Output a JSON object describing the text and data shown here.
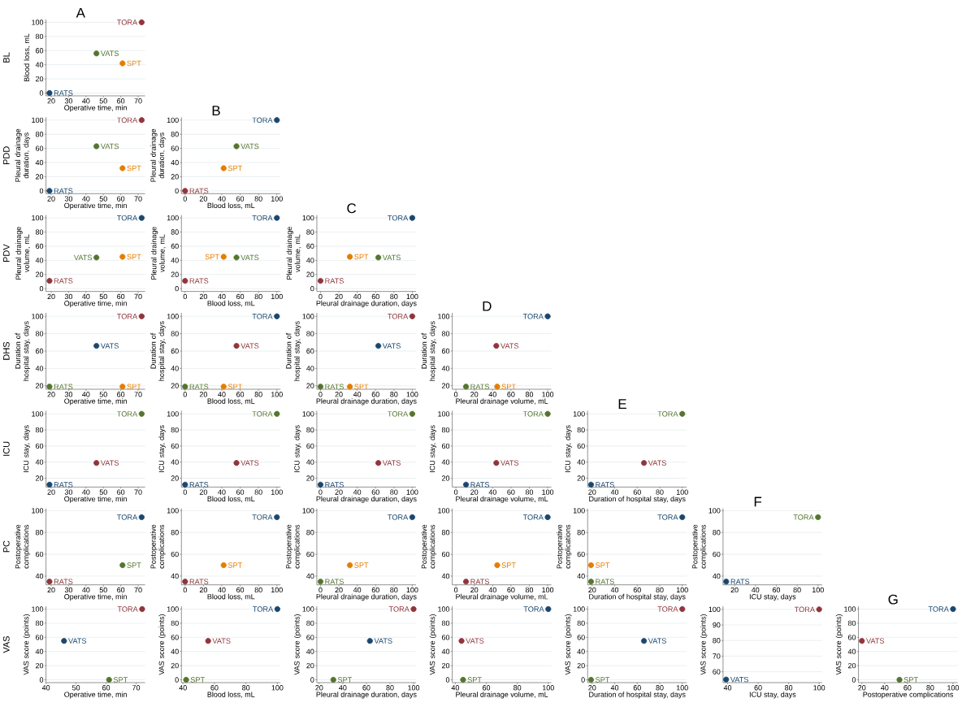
{
  "chart_data": [
    {
      "type": "scatter",
      "title": "A",
      "xlabel": "Operative time, min",
      "ylabel": "Blood loss, mL",
      "xlim": [
        17,
        74
      ],
      "xticks": [
        20,
        30,
        40,
        50,
        60,
        70
      ],
      "ylim": [
        -4,
        104
      ],
      "yticks": [
        0,
        20,
        40,
        60,
        80,
        100
      ],
      "grid": "y",
      "annotations": [
        "BL"
      ],
      "series": [
        {
          "name": "TORA",
          "color": "#90353b",
          "x": [
            72
          ],
          "values": [
            100
          ]
        },
        {
          "name": "VATS",
          "color": "#55752f",
          "x": [
            46
          ],
          "values": [
            56
          ]
        },
        {
          "name": "SPT",
          "color": "#e37e00",
          "x": [
            61
          ],
          "values": [
            42
          ]
        },
        {
          "name": "RATS",
          "color": "#1a476f",
          "x": [
            19
          ],
          "values": [
            0
          ]
        }
      ]
    },
    {
      "type": "scatter",
      "xlabel": "Operative time, min",
      "ylabel": "Pleural drainage duration, days",
      "xlim": [
        17,
        74
      ],
      "xticks": [
        20,
        30,
        40,
        50,
        60,
        70
      ],
      "ylim": [
        -4,
        104
      ],
      "yticks": [
        0,
        20,
        40,
        60,
        80,
        100
      ],
      "grid": "y",
      "annotations": [
        "PDD"
      ],
      "series": [
        {
          "name": "TORA",
          "color": "#90353b",
          "x": [
            72
          ],
          "values": [
            100
          ]
        },
        {
          "name": "VATS",
          "color": "#55752f",
          "x": [
            46
          ],
          "values": [
            63
          ]
        },
        {
          "name": "SPT",
          "color": "#e37e00",
          "x": [
            61
          ],
          "values": [
            32
          ]
        },
        {
          "name": "RATS",
          "color": "#1a476f",
          "x": [
            19
          ],
          "values": [
            0
          ]
        }
      ]
    },
    {
      "type": "scatter",
      "title": "B",
      "xlabel": "Blood loss, mL",
      "ylabel": "Pleural drainage duration, days",
      "xlim": [
        -4,
        104
      ],
      "xticks": [
        0,
        20,
        40,
        60,
        80,
        100
      ],
      "ylim": [
        -4,
        104
      ],
      "yticks": [
        0,
        20,
        40,
        60,
        80,
        100
      ],
      "grid": "y",
      "series": [
        {
          "name": "TORA",
          "color": "#1a476f",
          "x": [
            100
          ],
          "values": [
            100
          ]
        },
        {
          "name": "VATS",
          "color": "#55752f",
          "x": [
            56
          ],
          "values": [
            63
          ]
        },
        {
          "name": "SPT",
          "color": "#e37e00",
          "x": [
            42
          ],
          "values": [
            32
          ]
        },
        {
          "name": "RATS",
          "color": "#90353b",
          "x": [
            0
          ],
          "values": [
            0
          ]
        }
      ]
    },
    {
      "type": "scatter",
      "xlabel": "Operative time, min",
      "ylabel": "Pleural drainage volume, mL",
      "xlim": [
        17,
        74
      ],
      "xticks": [
        20,
        30,
        40,
        50,
        60,
        70
      ],
      "ylim": [
        -4,
        104
      ],
      "yticks": [
        0,
        20,
        40,
        60,
        80,
        100
      ],
      "grid": "y",
      "annotations": [
        "PDV"
      ],
      "series": [
        {
          "name": "TORA",
          "color": "#1a476f",
          "x": [
            72
          ],
          "values": [
            100
          ]
        },
        {
          "name": "VATS",
          "color": "#55752f",
          "x": [
            46
          ],
          "values": [
            44
          ]
        },
        {
          "name": "SPT",
          "color": "#e37e00",
          "x": [
            61
          ],
          "values": [
            45
          ]
        },
        {
          "name": "RATS",
          "color": "#90353b",
          "x": [
            19
          ],
          "values": [
            11
          ]
        }
      ]
    },
    {
      "type": "scatter",
      "xlabel": "Blood loss, mL",
      "ylabel": "Pleural drainage volume, mL",
      "xlim": [
        -4,
        104
      ],
      "xticks": [
        0,
        20,
        40,
        60,
        80,
        100
      ],
      "ylim": [
        -4,
        104
      ],
      "yticks": [
        0,
        20,
        40,
        60,
        80,
        100
      ],
      "grid": "y",
      "series": [
        {
          "name": "TORA",
          "color": "#1a476f",
          "x": [
            100
          ],
          "values": [
            100
          ]
        },
        {
          "name": "VATS",
          "color": "#55752f",
          "x": [
            56
          ],
          "values": [
            44
          ]
        },
        {
          "name": "SPT",
          "color": "#e37e00",
          "x": [
            42
          ],
          "values": [
            45
          ]
        },
        {
          "name": "RATS",
          "color": "#90353b",
          "x": [
            0
          ],
          "values": [
            11
          ]
        }
      ]
    },
    {
      "type": "scatter",
      "title": "C",
      "xlabel": "Pleural drainage duration, days",
      "ylabel": "Pleural drainage volume, mL",
      "xlim": [
        -4,
        104
      ],
      "xticks": [
        0,
        20,
        40,
        60,
        80,
        100
      ],
      "ylim": [
        -4,
        104
      ],
      "yticks": [
        0,
        20,
        40,
        60,
        80,
        100
      ],
      "grid": "y",
      "series": [
        {
          "name": "TORA",
          "color": "#1a476f",
          "x": [
            100
          ],
          "values": [
            100
          ]
        },
        {
          "name": "VATS",
          "color": "#55752f",
          "x": [
            63
          ],
          "values": [
            44
          ]
        },
        {
          "name": "SPT",
          "color": "#e37e00",
          "x": [
            32
          ],
          "values": [
            45
          ]
        },
        {
          "name": "RATS",
          "color": "#90353b",
          "x": [
            0
          ],
          "values": [
            11
          ]
        }
      ]
    },
    {
      "type": "scatter",
      "xlabel": "Operative time, min",
      "ylabel": "Duration of hospital stay, days",
      "xlim": [
        17,
        74
      ],
      "xticks": [
        20,
        30,
        40,
        50,
        60,
        70
      ],
      "ylim": [
        16,
        104
      ],
      "yticks": [
        20,
        40,
        60,
        80,
        100
      ],
      "grid": "y",
      "annotations": [
        "DHS"
      ],
      "series": [
        {
          "name": "TORA",
          "color": "#90353b",
          "x": [
            72
          ],
          "values": [
            100
          ]
        },
        {
          "name": "VATS",
          "color": "#1a476f",
          "x": [
            46
          ],
          "values": [
            66
          ]
        },
        {
          "name": "SPT",
          "color": "#e37e00",
          "x": [
            61
          ],
          "values": [
            19
          ]
        },
        {
          "name": "RATS",
          "color": "#55752f",
          "x": [
            19
          ],
          "values": [
            19
          ]
        }
      ]
    },
    {
      "type": "scatter",
      "xlabel": "Blood loss, mL",
      "ylabel": "Duration of hospital stay, days",
      "xlim": [
        -4,
        104
      ],
      "xticks": [
        0,
        20,
        40,
        60,
        80,
        100
      ],
      "ylim": [
        16,
        104
      ],
      "yticks": [
        20,
        40,
        60,
        80,
        100
      ],
      "grid": "y",
      "series": [
        {
          "name": "TORA",
          "color": "#1a476f",
          "x": [
            100
          ],
          "values": [
            100
          ]
        },
        {
          "name": "VATS",
          "color": "#90353b",
          "x": [
            56
          ],
          "values": [
            66
          ]
        },
        {
          "name": "SPT",
          "color": "#e37e00",
          "x": [
            42
          ],
          "values": [
            19
          ]
        },
        {
          "name": "RATS",
          "color": "#55752f",
          "x": [
            0
          ],
          "values": [
            19
          ]
        }
      ]
    },
    {
      "type": "scatter",
      "xlabel": "Pleural drainage duration, days",
      "ylabel": "Duration of hospital stay, days",
      "xlim": [
        -4,
        104
      ],
      "xticks": [
        0,
        20,
        40,
        60,
        80,
        100
      ],
      "ylim": [
        16,
        104
      ],
      "yticks": [
        20,
        40,
        60,
        80,
        100
      ],
      "grid": "y",
      "series": [
        {
          "name": "TORA",
          "color": "#90353b",
          "x": [
            100
          ],
          "values": [
            100
          ]
        },
        {
          "name": "VATS",
          "color": "#1a476f",
          "x": [
            63
          ],
          "values": [
            66
          ]
        },
        {
          "name": "SPT",
          "color": "#e37e00",
          "x": [
            32
          ],
          "values": [
            19
          ]
        },
        {
          "name": "RATS",
          "color": "#55752f",
          "x": [
            0
          ],
          "values": [
            19
          ]
        }
      ]
    },
    {
      "type": "scatter",
      "title": "D",
      "xlabel": "Pleural drainage volume, mL",
      "ylabel": "Duration of hospital stay, days",
      "xlim": [
        -4,
        104
      ],
      "xticks": [
        0,
        20,
        40,
        60,
        80,
        100
      ],
      "ylim": [
        16,
        104
      ],
      "yticks": [
        20,
        40,
        60,
        80,
        100
      ],
      "grid": "y",
      "series": [
        {
          "name": "TORA",
          "color": "#1a476f",
          "x": [
            100
          ],
          "values": [
            100
          ]
        },
        {
          "name": "VATS",
          "color": "#90353b",
          "x": [
            44
          ],
          "values": [
            66
          ]
        },
        {
          "name": "SPT",
          "color": "#e37e00",
          "x": [
            45
          ],
          "values": [
            19
          ]
        },
        {
          "name": "RATS",
          "color": "#55752f",
          "x": [
            11
          ],
          "values": [
            19
          ]
        }
      ]
    },
    {
      "type": "scatter",
      "xlabel": "Operative time, min",
      "ylabel": "ICU stay, days",
      "xlim": [
        17,
        74
      ],
      "xticks": [
        20,
        30,
        40,
        50,
        60,
        70
      ],
      "ylim": [
        9,
        104
      ],
      "yticks": [
        20,
        40,
        60,
        80,
        100
      ],
      "grid": "y",
      "annotations": [
        "ICU"
      ],
      "series": [
        {
          "name": "TORA",
          "color": "#55752f",
          "x": [
            72
          ],
          "values": [
            100
          ]
        },
        {
          "name": "VATS",
          "color": "#90353b",
          "x": [
            46
          ],
          "values": [
            39
          ]
        },
        {
          "name": "RATS",
          "color": "#1a476f",
          "x": [
            19
          ],
          "values": [
            12
          ]
        }
      ]
    },
    {
      "type": "scatter",
      "xlabel": "Blood loss, mL",
      "ylabel": "ICU stay, days",
      "xlim": [
        -4,
        104
      ],
      "xticks": [
        0,
        20,
        40,
        60,
        80,
        100
      ],
      "ylim": [
        9,
        104
      ],
      "yticks": [
        20,
        40,
        60,
        80,
        100
      ],
      "grid": "y",
      "series": [
        {
          "name": "TORA",
          "color": "#55752f",
          "x": [
            100
          ],
          "values": [
            100
          ]
        },
        {
          "name": "VATS",
          "color": "#90353b",
          "x": [
            56
          ],
          "values": [
            39
          ]
        },
        {
          "name": "RATS",
          "color": "#1a476f",
          "x": [
            0
          ],
          "values": [
            12
          ]
        }
      ]
    },
    {
      "type": "scatter",
      "xlabel": "Pleural drainage duration, days",
      "ylabel": "ICU stay, days",
      "xlim": [
        -4,
        104
      ],
      "xticks": [
        0,
        20,
        40,
        60,
        80,
        100
      ],
      "ylim": [
        9,
        104
      ],
      "yticks": [
        20,
        40,
        60,
        80,
        100
      ],
      "grid": "y",
      "series": [
        {
          "name": "TORA",
          "color": "#55752f",
          "x": [
            100
          ],
          "values": [
            100
          ]
        },
        {
          "name": "VATS",
          "color": "#90353b",
          "x": [
            63
          ],
          "values": [
            39
          ]
        },
        {
          "name": "RATS",
          "color": "#1a476f",
          "x": [
            0
          ],
          "values": [
            12
          ]
        }
      ]
    },
    {
      "type": "scatter",
      "xlabel": "Pleural drainage volume, mL",
      "ylabel": "ICU stay, days",
      "xlim": [
        -4,
        104
      ],
      "xticks": [
        0,
        20,
        40,
        60,
        80,
        100
      ],
      "ylim": [
        9,
        104
      ],
      "yticks": [
        20,
        40,
        60,
        80,
        100
      ],
      "grid": "y",
      "series": [
        {
          "name": "TORA",
          "color": "#55752f",
          "x": [
            100
          ],
          "values": [
            100
          ]
        },
        {
          "name": "VATS",
          "color": "#90353b",
          "x": [
            44
          ],
          "values": [
            39
          ]
        },
        {
          "name": "RATS",
          "color": "#1a476f",
          "x": [
            11
          ],
          "values": [
            12
          ]
        }
      ]
    },
    {
      "type": "scatter",
      "title": "E",
      "xlabel": "Duration of hospital stay, days",
      "ylabel": "ICU stay, days",
      "xlim": [
        16,
        104
      ],
      "xticks": [
        20,
        40,
        60,
        80,
        100
      ],
      "ylim": [
        9,
        104
      ],
      "yticks": [
        20,
        40,
        60,
        80,
        100
      ],
      "grid": "y",
      "series": [
        {
          "name": "TORA",
          "color": "#55752f",
          "x": [
            100
          ],
          "values": [
            100
          ]
        },
        {
          "name": "VATS",
          "color": "#90353b",
          "x": [
            66
          ],
          "values": [
            39
          ]
        },
        {
          "name": "RATS",
          "color": "#1a476f",
          "x": [
            19
          ],
          "values": [
            12
          ]
        }
      ]
    },
    {
      "type": "scatter",
      "xlabel": "Operative time, min",
      "ylabel": "Postoperative complications",
      "xlim": [
        17,
        74
      ],
      "xticks": [
        20,
        30,
        40,
        50,
        60,
        70
      ],
      "ylim": [
        32,
        102
      ],
      "yticks": [
        40,
        60,
        80,
        100
      ],
      "grid": "y",
      "annotations": [
        "PC"
      ],
      "series": [
        {
          "name": "TORA",
          "color": "#1a476f",
          "x": [
            72
          ],
          "values": [
            94
          ]
        },
        {
          "name": "SPT",
          "color": "#55752f",
          "x": [
            61
          ],
          "values": [
            50
          ]
        },
        {
          "name": "RATS",
          "color": "#90353b",
          "x": [
            19
          ],
          "values": [
            35
          ]
        }
      ]
    },
    {
      "type": "scatter",
      "xlabel": "Blood loss, mL",
      "ylabel": "Postoperative complications",
      "xlim": [
        -4,
        104
      ],
      "xticks": [
        0,
        20,
        40,
        60,
        80,
        100
      ],
      "ylim": [
        32,
        102
      ],
      "yticks": [
        40,
        60,
        80,
        100
      ],
      "grid": "y",
      "series": [
        {
          "name": "TORA",
          "color": "#1a476f",
          "x": [
            100
          ],
          "values": [
            94
          ]
        },
        {
          "name": "SPT",
          "color": "#e37e00",
          "x": [
            42
          ],
          "values": [
            50
          ]
        },
        {
          "name": "RATS",
          "color": "#90353b",
          "x": [
            0
          ],
          "values": [
            35
          ]
        }
      ]
    },
    {
      "type": "scatter",
      "xlabel": "Pleural drainage duration, days",
      "ylabel": "Postoperative complications",
      "xlim": [
        -4,
        104
      ],
      "xticks": [
        0,
        20,
        40,
        60,
        80,
        100
      ],
      "ylim": [
        32,
        102
      ],
      "yticks": [
        40,
        60,
        80,
        100
      ],
      "grid": "y",
      "series": [
        {
          "name": "TORA",
          "color": "#1a476f",
          "x": [
            100
          ],
          "values": [
            94
          ]
        },
        {
          "name": "SPT",
          "color": "#e37e00",
          "x": [
            32
          ],
          "values": [
            50
          ]
        },
        {
          "name": "RATS",
          "color": "#55752f",
          "x": [
            0
          ],
          "values": [
            35
          ]
        }
      ]
    },
    {
      "type": "scatter",
      "xlabel": "Pleural drainage volume, mL",
      "ylabel": "Postoperative complications",
      "xlim": [
        -4,
        104
      ],
      "xticks": [
        0,
        20,
        40,
        60,
        80,
        100
      ],
      "ylim": [
        32,
        102
      ],
      "yticks": [
        40,
        60,
        80,
        100
      ],
      "grid": "y",
      "series": [
        {
          "name": "TORA",
          "color": "#1a476f",
          "x": [
            100
          ],
          "values": [
            94
          ]
        },
        {
          "name": "SPT",
          "color": "#e37e00",
          "x": [
            45
          ],
          "values": [
            50
          ]
        },
        {
          "name": "RATS",
          "color": "#90353b",
          "x": [
            11
          ],
          "values": [
            35
          ]
        }
      ]
    },
    {
      "type": "scatter",
      "xlabel": "Duration of hospital stay, days",
      "ylabel": "Postoperative complications",
      "xlim": [
        16,
        104
      ],
      "xticks": [
        20,
        40,
        60,
        80,
        100
      ],
      "ylim": [
        32,
        102
      ],
      "yticks": [
        40,
        60,
        80,
        100
      ],
      "grid": "y",
      "series": [
        {
          "name": "TORA",
          "color": "#1a476f",
          "x": [
            100
          ],
          "values": [
            94
          ]
        },
        {
          "name": "SPT",
          "color": "#e37e00",
          "x": [
            19
          ],
          "values": [
            50
          ]
        },
        {
          "name": "RATS",
          "color": "#55752f",
          "x": [
            19
          ],
          "values": [
            35
          ]
        }
      ]
    },
    {
      "type": "scatter",
      "title": "F",
      "xlabel": "ICU stay, days",
      "ylabel": "Postoperative complications",
      "xlim": [
        9,
        104
      ],
      "xticks": [
        20,
        40,
        60,
        80,
        100
      ],
      "ylim": [
        32,
        102
      ],
      "yticks": [
        40,
        60,
        80,
        100
      ],
      "grid": "y",
      "series": [
        {
          "name": "TORA",
          "color": "#55752f",
          "x": [
            100
          ],
          "values": [
            94
          ]
        },
        {
          "name": "RATS",
          "color": "#1a476f",
          "x": [
            12
          ],
          "values": [
            35
          ]
        }
      ]
    },
    {
      "type": "scatter",
      "xlabel": "Operative time, min",
      "ylabel": "VAS score (points)",
      "xlim": [
        40,
        73
      ],
      "xticks": [
        40,
        50,
        60,
        70
      ],
      "ylim": [
        -4,
        104
      ],
      "yticks": [
        0,
        20,
        40,
        60,
        80,
        100
      ],
      "grid": "y",
      "annotations": [
        "VAS"
      ],
      "series": [
        {
          "name": "TORA",
          "color": "#90353b",
          "x": [
            72
          ],
          "values": [
            100
          ]
        },
        {
          "name": "VATS",
          "color": "#1a476f",
          "x": [
            46
          ],
          "values": [
            55
          ]
        },
        {
          "name": "SPT",
          "color": "#55752f",
          "x": [
            61
          ],
          "values": [
            0
          ]
        }
      ]
    },
    {
      "type": "scatter",
      "xlabel": "Blood loss, mL",
      "ylabel": "VAS score (points)",
      "xlim": [
        39,
        102
      ],
      "xticks": [
        40,
        60,
        80,
        100
      ],
      "ylim": [
        -4,
        104
      ],
      "yticks": [
        0,
        20,
        40,
        60,
        80,
        100
      ],
      "grid": "y",
      "series": [
        {
          "name": "TORA",
          "color": "#1a476f",
          "x": [
            100
          ],
          "values": [
            100
          ]
        },
        {
          "name": "VATS",
          "color": "#90353b",
          "x": [
            56
          ],
          "values": [
            55
          ]
        },
        {
          "name": "SPT",
          "color": "#55752f",
          "x": [
            42
          ],
          "values": [
            0
          ]
        }
      ]
    },
    {
      "type": "scatter",
      "xlabel": "Pleural drainage duration, days",
      "ylabel": "VAS score (points)",
      "xlim": [
        18,
        102
      ],
      "xticks": [
        20,
        40,
        60,
        80,
        100
      ],
      "ylim": [
        -4,
        104
      ],
      "yticks": [
        0,
        20,
        40,
        60,
        80,
        100
      ],
      "grid": "y",
      "series": [
        {
          "name": "TORA",
          "color": "#90353b",
          "x": [
            100
          ],
          "values": [
            100
          ]
        },
        {
          "name": "VATS",
          "color": "#1a476f",
          "x": [
            63
          ],
          "values": [
            55
          ]
        },
        {
          "name": "SPT",
          "color": "#55752f",
          "x": [
            32
          ],
          "values": [
            0
          ]
        }
      ]
    },
    {
      "type": "scatter",
      "xlabel": "Pleural drainage volume, mL",
      "ylabel": "VAS score (points)",
      "xlim": [
        38,
        102
      ],
      "xticks": [
        40,
        60,
        80,
        100
      ],
      "ylim": [
        -4,
        104
      ],
      "yticks": [
        0,
        20,
        40,
        60,
        80,
        100
      ],
      "grid": "y",
      "series": [
        {
          "name": "TORA",
          "color": "#1a476f",
          "x": [
            100
          ],
          "values": [
            100
          ]
        },
        {
          "name": "VATS",
          "color": "#90353b",
          "x": [
            44
          ],
          "values": [
            55
          ]
        },
        {
          "name": "SPT",
          "color": "#55752f",
          "x": [
            45
          ],
          "values": [
            0
          ]
        }
      ]
    },
    {
      "type": "scatter",
      "xlabel": "Duration of hospital stay, days",
      "ylabel": "VAS score (points)",
      "xlim": [
        16,
        104
      ],
      "xticks": [
        20,
        40,
        60,
        80,
        100
      ],
      "ylim": [
        -4,
        104
      ],
      "yticks": [
        0,
        20,
        40,
        60,
        80,
        100
      ],
      "grid": "y",
      "series": [
        {
          "name": "TORA",
          "color": "#90353b",
          "x": [
            100
          ],
          "values": [
            100
          ]
        },
        {
          "name": "VATS",
          "color": "#1a476f",
          "x": [
            66
          ],
          "values": [
            55
          ]
        },
        {
          "name": "SPT",
          "color": "#55752f",
          "x": [
            19
          ],
          "values": [
            0
          ]
        }
      ]
    },
    {
      "type": "scatter",
      "xlabel": "ICU stay, days",
      "ylabel": "VAS score (points)",
      "xlim": [
        37,
        102
      ],
      "xticks": [
        40,
        60,
        80,
        100
      ],
      "ylim": [
        53,
        102
      ],
      "yticks": [
        60,
        70,
        80,
        90,
        100
      ],
      "grid": "y",
      "series": [
        {
          "name": "TORA",
          "color": "#90353b",
          "x": [
            100
          ],
          "values": [
            100
          ]
        },
        {
          "name": "VATS",
          "color": "#1a476f",
          "x": [
            39
          ],
          "values": [
            55
          ]
        }
      ]
    },
    {
      "type": "scatter",
      "title": "G",
      "xlabel": "Postoperative complications",
      "ylabel": "VAS score (points)",
      "xlim": [
        17,
        104
      ],
      "xticks": [
        20,
        40,
        60,
        80,
        100
      ],
      "ylim": [
        -4,
        104
      ],
      "yticks": [
        0,
        20,
        40,
        60,
        80,
        100
      ],
      "grid": "y",
      "series": [
        {
          "name": "TORA",
          "color": "#1a476f",
          "x": [
            100
          ],
          "values": [
            100
          ]
        },
        {
          "name": "VATS",
          "color": "#90353b",
          "x": [
            20
          ],
          "values": [
            55
          ]
        },
        {
          "name": "SPT",
          "color": "#55752f",
          "x": [
            53
          ],
          "values": [
            0
          ]
        }
      ]
    }
  ]
}
